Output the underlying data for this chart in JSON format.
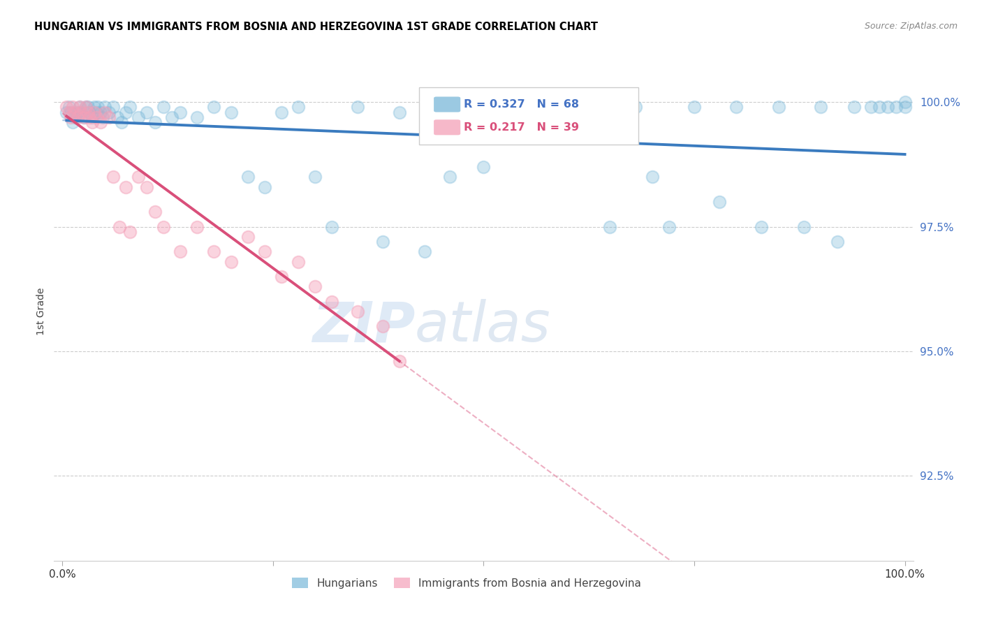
{
  "title": "HUNGARIAN VS IMMIGRANTS FROM BOSNIA AND HERZEGOVINA 1ST GRADE CORRELATION CHART",
  "source": "Source: ZipAtlas.com",
  "ylabel": "1st Grade",
  "legend_labels": [
    "Hungarians",
    "Immigrants from Bosnia and Herzegovina"
  ],
  "R_hungarian": 0.327,
  "N_hungarian": 68,
  "R_bosnian": 0.217,
  "N_bosnian": 39,
  "blue_color": "#7ab8d9",
  "pink_color": "#f4a0b8",
  "blue_line_color": "#3a7bbf",
  "pink_line_color": "#d94f7a",
  "watermark_zip": "ZIP",
  "watermark_atlas": "atlas",
  "xlim": [
    0.0,
    1.0
  ],
  "ylim": [
    0.908,
    1.008
  ],
  "yticks": [
    0.925,
    0.95,
    0.975,
    1.0
  ],
  "ytick_labels": [
    "92.5%",
    "95.0%",
    "97.5%",
    "100.0%"
  ],
  "hungarian_x": [
    0.005,
    0.008,
    0.01,
    0.012,
    0.015,
    0.018,
    0.02,
    0.022,
    0.025,
    0.028,
    0.03,
    0.032,
    0.035,
    0.038,
    0.04,
    0.042,
    0.045,
    0.048,
    0.05,
    0.055,
    0.06,
    0.065,
    0.07,
    0.075,
    0.08,
    0.09,
    0.1,
    0.11,
    0.12,
    0.13,
    0.14,
    0.16,
    0.18,
    0.2,
    0.22,
    0.24,
    0.26,
    0.28,
    0.3,
    0.32,
    0.35,
    0.38,
    0.4,
    0.43,
    0.46,
    0.5,
    0.54,
    0.58,
    0.62,
    0.65,
    0.68,
    0.7,
    0.72,
    0.75,
    0.78,
    0.8,
    0.83,
    0.85,
    0.88,
    0.9,
    0.92,
    0.94,
    0.96,
    0.97,
    0.98,
    0.99,
    1.0,
    1.0
  ],
  "hungarian_y": [
    0.998,
    0.999,
    0.998,
    0.996,
    0.997,
    0.998,
    0.999,
    0.998,
    0.997,
    0.999,
    0.999,
    0.998,
    0.997,
    0.999,
    0.998,
    0.999,
    0.998,
    0.997,
    0.999,
    0.998,
    0.999,
    0.997,
    0.996,
    0.998,
    0.999,
    0.997,
    0.998,
    0.996,
    0.999,
    0.997,
    0.998,
    0.997,
    0.999,
    0.998,
    0.985,
    0.983,
    0.998,
    0.999,
    0.985,
    0.975,
    0.999,
    0.972,
    0.998,
    0.97,
    0.985,
    0.987,
    0.999,
    0.999,
    0.998,
    0.975,
    0.999,
    0.985,
    0.975,
    0.999,
    0.98,
    0.999,
    0.975,
    0.999,
    0.975,
    0.999,
    0.972,
    0.999,
    0.999,
    0.999,
    0.999,
    0.999,
    0.999,
    1.0
  ],
  "bosnian_x": [
    0.005,
    0.008,
    0.01,
    0.012,
    0.015,
    0.018,
    0.02,
    0.022,
    0.025,
    0.028,
    0.03,
    0.032,
    0.035,
    0.038,
    0.04,
    0.045,
    0.05,
    0.055,
    0.06,
    0.068,
    0.075,
    0.08,
    0.09,
    0.1,
    0.11,
    0.12,
    0.14,
    0.16,
    0.18,
    0.2,
    0.22,
    0.24,
    0.26,
    0.28,
    0.3,
    0.32,
    0.35,
    0.38,
    0.4
  ],
  "bosnian_y": [
    0.999,
    0.998,
    0.997,
    0.999,
    0.998,
    0.997,
    0.999,
    0.998,
    0.997,
    0.999,
    0.998,
    0.997,
    0.996,
    0.998,
    0.997,
    0.996,
    0.998,
    0.997,
    0.985,
    0.975,
    0.983,
    0.974,
    0.985,
    0.983,
    0.978,
    0.975,
    0.97,
    0.975,
    0.97,
    0.968,
    0.973,
    0.97,
    0.965,
    0.968,
    0.963,
    0.96,
    0.958,
    0.955,
    0.948
  ]
}
